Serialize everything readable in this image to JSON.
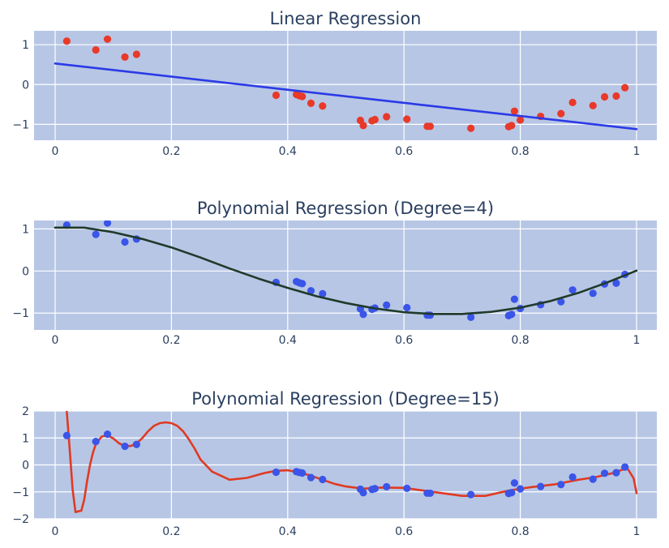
{
  "colors": {
    "plot_bg": "#b7c6e5",
    "grid": "#ffffff",
    "text": "#2a3f5f"
  },
  "chart_data": [
    {
      "type": "scatter",
      "title": "Linear Regression",
      "xlim": [
        0,
        1
      ],
      "ylim": [
        -1.4,
        1.35
      ],
      "xticks": [
        0,
        0.2,
        0.4,
        0.6,
        0.8,
        1
      ],
      "xtick_labels": [
        "0",
        "0.2",
        "0.4",
        "0.6",
        "0.8",
        "1"
      ],
      "yticks": [
        1,
        0,
        -1
      ],
      "ytick_labels": [
        "1",
        "0",
        "−1"
      ],
      "grid": true,
      "legend": "none",
      "series": [
        {
          "kind": "markers",
          "color": "#e8392a",
          "x": [
            0.02,
            0.07,
            0.09,
            0.12,
            0.14,
            0.38,
            0.415,
            0.42,
            0.425,
            0.44,
            0.46,
            0.525,
            0.53,
            0.545,
            0.55,
            0.57,
            0.605,
            0.64,
            0.645,
            0.715,
            0.78,
            0.785,
            0.79,
            0.8,
            0.835,
            0.87,
            0.89,
            0.925,
            0.945,
            0.965,
            0.98
          ],
          "y": [
            1.09,
            0.87,
            1.14,
            0.69,
            0.76,
            -0.27,
            -0.25,
            -0.28,
            -0.3,
            -0.47,
            -0.54,
            -0.9,
            -1.03,
            -0.91,
            -0.88,
            -0.81,
            -0.87,
            -1.05,
            -1.05,
            -1.1,
            -1.06,
            -1.03,
            -0.67,
            -0.89,
            -0.8,
            -0.73,
            -0.45,
            -0.53,
            -0.31,
            -0.29,
            -0.08
          ]
        },
        {
          "kind": "line",
          "color": "#2b3ae6",
          "x": [
            0,
            1
          ],
          "y": [
            0.53,
            -1.12
          ]
        }
      ]
    },
    {
      "type": "scatter",
      "title": "Polynomial Regression (Degree=4)",
      "xlim": [
        0,
        1
      ],
      "ylim": [
        -1.4,
        1.2
      ],
      "xticks": [
        0,
        0.2,
        0.4,
        0.6,
        0.8,
        1
      ],
      "xtick_labels": [
        "0",
        "0.2",
        "0.4",
        "0.6",
        "0.8",
        "1"
      ],
      "yticks": [
        1,
        0,
        -1
      ],
      "ytick_labels": [
        "1",
        "0",
        "−1"
      ],
      "grid": true,
      "legend": "none",
      "series": [
        {
          "kind": "markers",
          "color": "#3a55e8",
          "x": [
            0.02,
            0.07,
            0.09,
            0.12,
            0.14,
            0.38,
            0.415,
            0.42,
            0.425,
            0.44,
            0.46,
            0.525,
            0.53,
            0.545,
            0.55,
            0.57,
            0.605,
            0.64,
            0.645,
            0.715,
            0.78,
            0.785,
            0.79,
            0.8,
            0.835,
            0.87,
            0.89,
            0.925,
            0.945,
            0.965,
            0.98
          ],
          "y": [
            1.09,
            0.87,
            1.14,
            0.69,
            0.76,
            -0.27,
            -0.25,
            -0.28,
            -0.3,
            -0.47,
            -0.54,
            -0.9,
            -1.03,
            -0.91,
            -0.88,
            -0.81,
            -0.87,
            -1.05,
            -1.05,
            -1.1,
            -1.06,
            -1.03,
            -0.67,
            -0.89,
            -0.8,
            -0.73,
            -0.45,
            -0.53,
            -0.31,
            -0.29,
            -0.08
          ]
        },
        {
          "kind": "line",
          "color": "#1f3a2a",
          "x": [
            0,
            0.05,
            0.1,
            0.15,
            0.2,
            0.25,
            0.3,
            0.35,
            0.4,
            0.45,
            0.5,
            0.55,
            0.6,
            0.65,
            0.7,
            0.75,
            0.8,
            0.85,
            0.9,
            0.95,
            1.0
          ],
          "y": [
            1.03,
            1.03,
            0.92,
            0.76,
            0.56,
            0.32,
            0.06,
            -0.18,
            -0.4,
            -0.6,
            -0.76,
            -0.89,
            -0.98,
            -1.02,
            -1.02,
            -0.97,
            -0.87,
            -0.72,
            -0.52,
            -0.27,
            0.01
          ]
        }
      ]
    },
    {
      "type": "scatter",
      "title": "Polynomial Regression (Degree=15)",
      "xlim": [
        0,
        1
      ],
      "ylim": [
        -2.0,
        2.0
      ],
      "xticks": [
        0,
        0.2,
        0.4,
        0.6,
        0.8,
        1
      ],
      "xtick_labels": [
        "0",
        "0.2",
        "0.4",
        "0.6",
        "0.8",
        "1"
      ],
      "yticks": [
        2,
        1,
        0,
        -1,
        -2
      ],
      "ytick_labels": [
        "2",
        "1",
        "0",
        "−1",
        "−2"
      ],
      "grid": true,
      "legend": "none",
      "series": [
        {
          "kind": "line",
          "color": "#e03a22",
          "x": [
            0.02,
            0.025,
            0.03,
            0.035,
            0.04,
            0.045,
            0.05,
            0.055,
            0.06,
            0.065,
            0.07,
            0.08,
            0.09,
            0.1,
            0.11,
            0.12,
            0.13,
            0.14,
            0.15,
            0.16,
            0.17,
            0.18,
            0.19,
            0.2,
            0.21,
            0.22,
            0.23,
            0.24,
            0.25,
            0.27,
            0.3,
            0.33,
            0.36,
            0.38,
            0.4,
            0.42,
            0.44,
            0.46,
            0.48,
            0.5,
            0.53,
            0.56,
            0.6,
            0.65,
            0.7,
            0.74,
            0.78,
            0.82,
            0.86,
            0.9,
            0.93,
            0.96,
            0.975,
            0.985,
            0.995,
            1.0
          ],
          "y": [
            2.0,
            0.6,
            -0.9,
            -1.75,
            -1.72,
            -1.7,
            -1.3,
            -0.6,
            0.0,
            0.45,
            0.78,
            1.05,
            1.1,
            0.98,
            0.8,
            0.7,
            0.7,
            0.8,
            1.0,
            1.25,
            1.45,
            1.55,
            1.58,
            1.55,
            1.45,
            1.25,
            0.95,
            0.6,
            0.2,
            -0.25,
            -0.55,
            -0.48,
            -0.3,
            -0.22,
            -0.2,
            -0.28,
            -0.4,
            -0.55,
            -0.7,
            -0.8,
            -0.88,
            -0.84,
            -0.85,
            -1.0,
            -1.15,
            -1.15,
            -0.95,
            -0.82,
            -0.72,
            -0.55,
            -0.45,
            -0.3,
            -0.18,
            -0.15,
            -0.5,
            -1.05
          ]
        },
        {
          "kind": "markers",
          "color": "#3a55e8",
          "x": [
            0.02,
            0.07,
            0.09,
            0.12,
            0.14,
            0.38,
            0.415,
            0.42,
            0.425,
            0.44,
            0.46,
            0.525,
            0.53,
            0.545,
            0.55,
            0.57,
            0.605,
            0.64,
            0.645,
            0.715,
            0.78,
            0.785,
            0.79,
            0.8,
            0.835,
            0.87,
            0.89,
            0.925,
            0.945,
            0.965,
            0.98
          ],
          "y": [
            1.09,
            0.87,
            1.14,
            0.69,
            0.76,
            -0.27,
            -0.25,
            -0.28,
            -0.3,
            -0.47,
            -0.54,
            -0.9,
            -1.03,
            -0.91,
            -0.88,
            -0.81,
            -0.87,
            -1.05,
            -1.05,
            -1.1,
            -1.06,
            -1.03,
            -0.67,
            -0.89,
            -0.8,
            -0.73,
            -0.45,
            -0.53,
            -0.31,
            -0.29,
            -0.08
          ]
        }
      ]
    }
  ]
}
